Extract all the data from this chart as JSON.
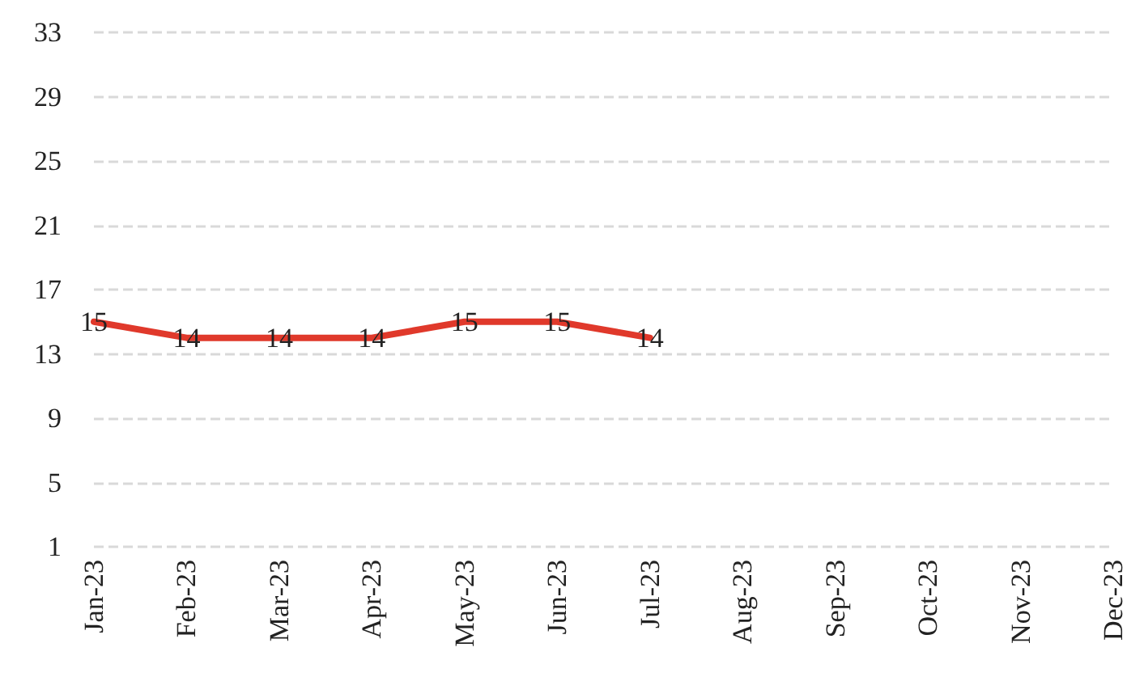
{
  "chart_data": {
    "type": "line",
    "categories": [
      "Jan-23",
      "Feb-23",
      "Mar-23",
      "Apr-23",
      "May-23",
      "Jun-23",
      "Jul-23",
      "Aug-23",
      "Sep-23",
      "Oct-23",
      "Nov-23",
      "Dec-23"
    ],
    "series": [
      {
        "color": "#e0392b",
        "values": [
          15,
          14,
          14,
          14,
          15,
          15,
          14,
          null,
          null,
          null,
          null,
          null
        ]
      }
    ],
    "ylim": [
      1,
      33
    ],
    "yticks": [
      1,
      5,
      9,
      13,
      17,
      21,
      25,
      29,
      33
    ],
    "grid": "y",
    "marker": "none",
    "line_style": "solid",
    "data_labels": true
  }
}
